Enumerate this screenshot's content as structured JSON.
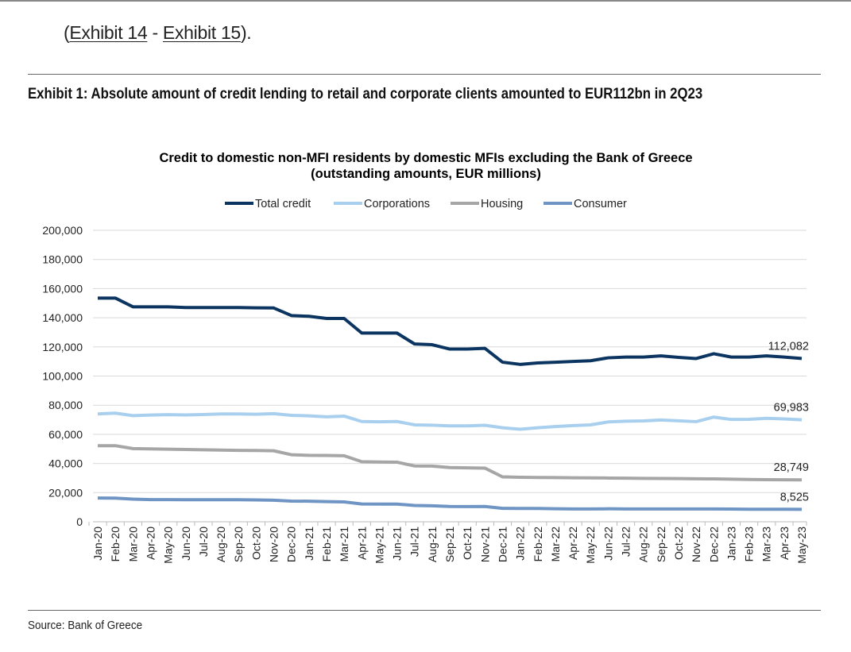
{
  "intro": {
    "open": "(",
    "link1": "Exhibit 14",
    "sep": " - ",
    "link2": "Exhibit 15",
    "close": ")."
  },
  "exhibit_title": "Exhibit 1: Absolute amount of credit lending to retail and corporate clients amounted to EUR112bn in 2Q23",
  "source": "Source: Bank of Greece",
  "chart_data": {
    "type": "line",
    "title": "Credit to domestic non-MFI residents by domestic MFIs excluding the Bank of Greece",
    "subtitle": "(outstanding amounts, EUR millions)",
    "legend_position": "top",
    "grid": true,
    "ylim": [
      0,
      200000
    ],
    "yticks": [
      "0",
      "20,000",
      "40,000",
      "60,000",
      "80,000",
      "100,000",
      "120,000",
      "140,000",
      "160,000",
      "180,000",
      "200,000"
    ],
    "x": [
      "Jan-20",
      "Feb-20",
      "Mar-20",
      "Apr-20",
      "May-20",
      "Jun-20",
      "Jul-20",
      "Aug-20",
      "Sep-20",
      "Oct-20",
      "Nov-20",
      "Dec-20",
      "Jan-21",
      "Feb-21",
      "Mar-21",
      "Apr-21",
      "May-21",
      "Jun-21",
      "Jul-21",
      "Aug-21",
      "Sep-21",
      "Oct-21",
      "Nov-21",
      "Dec-21",
      "Jan-22",
      "Feb-22",
      "Mar-22",
      "Apr-22",
      "May-22",
      "Jun-22",
      "Jul-22",
      "Aug-22",
      "Sep-22",
      "Oct-22",
      "Nov-22",
      "Dec-22",
      "Jan-23",
      "Feb-23",
      "Mar-23",
      "Apr-23",
      "May-23"
    ],
    "series": [
      {
        "name": "Total credit",
        "color": "#0b3560",
        "end_label": "112,082",
        "values": [
          153500,
          153500,
          147500,
          147500,
          147500,
          147000,
          147000,
          147000,
          147000,
          146800,
          146700,
          141500,
          141000,
          139500,
          139500,
          129500,
          129500,
          129500,
          122000,
          121500,
          118500,
          118500,
          119000,
          109500,
          108000,
          109000,
          109500,
          110000,
          110500,
          112500,
          113000,
          113000,
          113800,
          112800,
          112000,
          115300,
          113000,
          113000,
          113800,
          113000,
          112082
        ]
      },
      {
        "name": "Corporations",
        "color": "#a9cfee",
        "end_label": "69,983",
        "values": [
          74000,
          74500,
          72800,
          73200,
          73500,
          73300,
          73600,
          74000,
          74000,
          73800,
          74200,
          73000,
          72700,
          72000,
          72500,
          68800,
          68600,
          68800,
          66500,
          66300,
          65800,
          65800,
          66200,
          64500,
          63500,
          64500,
          65300,
          66000,
          66500,
          68500,
          69000,
          69200,
          69800,
          69300,
          68700,
          71800,
          70200,
          70300,
          71000,
          70600,
          69983
        ]
      },
      {
        "name": "Housing",
        "color": "#a6a6a6",
        "end_label": "28,749",
        "values": [
          52200,
          52200,
          50200,
          50000,
          49800,
          49600,
          49400,
          49200,
          49000,
          48900,
          48700,
          46000,
          45600,
          45500,
          45300,
          41200,
          41000,
          40900,
          38300,
          38200,
          37200,
          37000,
          36800,
          30800,
          30500,
          30400,
          30300,
          30200,
          30100,
          30000,
          29900,
          29800,
          29700,
          29600,
          29500,
          29400,
          29200,
          29000,
          28900,
          28800,
          28749
        ]
      },
      {
        "name": "Consumer",
        "color": "#6f95c4",
        "end_label": "8,525",
        "values": [
          16300,
          16200,
          15500,
          15200,
          15200,
          15100,
          15100,
          15100,
          15100,
          15000,
          14800,
          14200,
          14100,
          13800,
          13600,
          12200,
          12100,
          12100,
          11200,
          11000,
          10500,
          10400,
          10500,
          9200,
          9100,
          9100,
          8900,
          8800,
          8800,
          8900,
          8800,
          8800,
          8800,
          8800,
          8800,
          8800,
          8700,
          8600,
          8600,
          8600,
          8525
        ]
      }
    ]
  }
}
